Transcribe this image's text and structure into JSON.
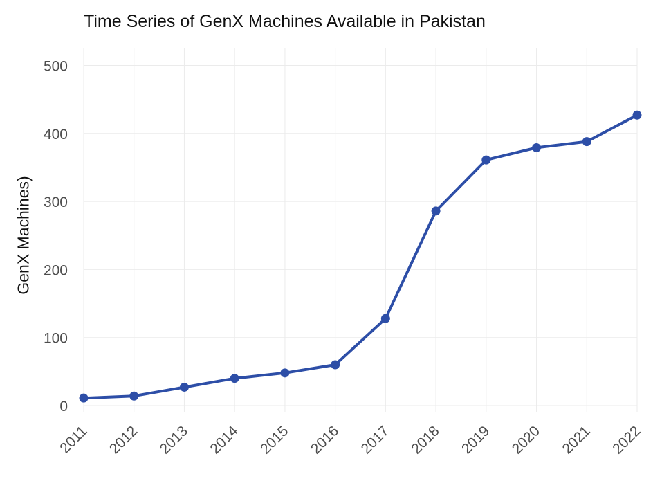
{
  "chart_data": {
    "type": "line",
    "title": "Time Series of GenX Machines Available in Pakistan",
    "xlabel": "",
    "ylabel": "GenX Machines)",
    "x": [
      "2011",
      "2012",
      "2013",
      "2014",
      "2015",
      "2016",
      "2017",
      "2018",
      "2019",
      "2020",
      "2021",
      "2022"
    ],
    "series": [
      {
        "values": [
          11,
          14,
          27,
          40,
          48,
          60,
          128,
          286,
          361,
          379,
          388,
          427
        ]
      }
    ],
    "ylim": [
      0,
      500
    ],
    "yticks": [
      "0",
      "100",
      "200",
      "300",
      "400",
      "500"
    ],
    "grid": true,
    "legend": "none",
    "colors": {
      "line": "#2d4ea7",
      "grid": "#ebebeb",
      "tick_text": "#4d4d4d"
    }
  }
}
